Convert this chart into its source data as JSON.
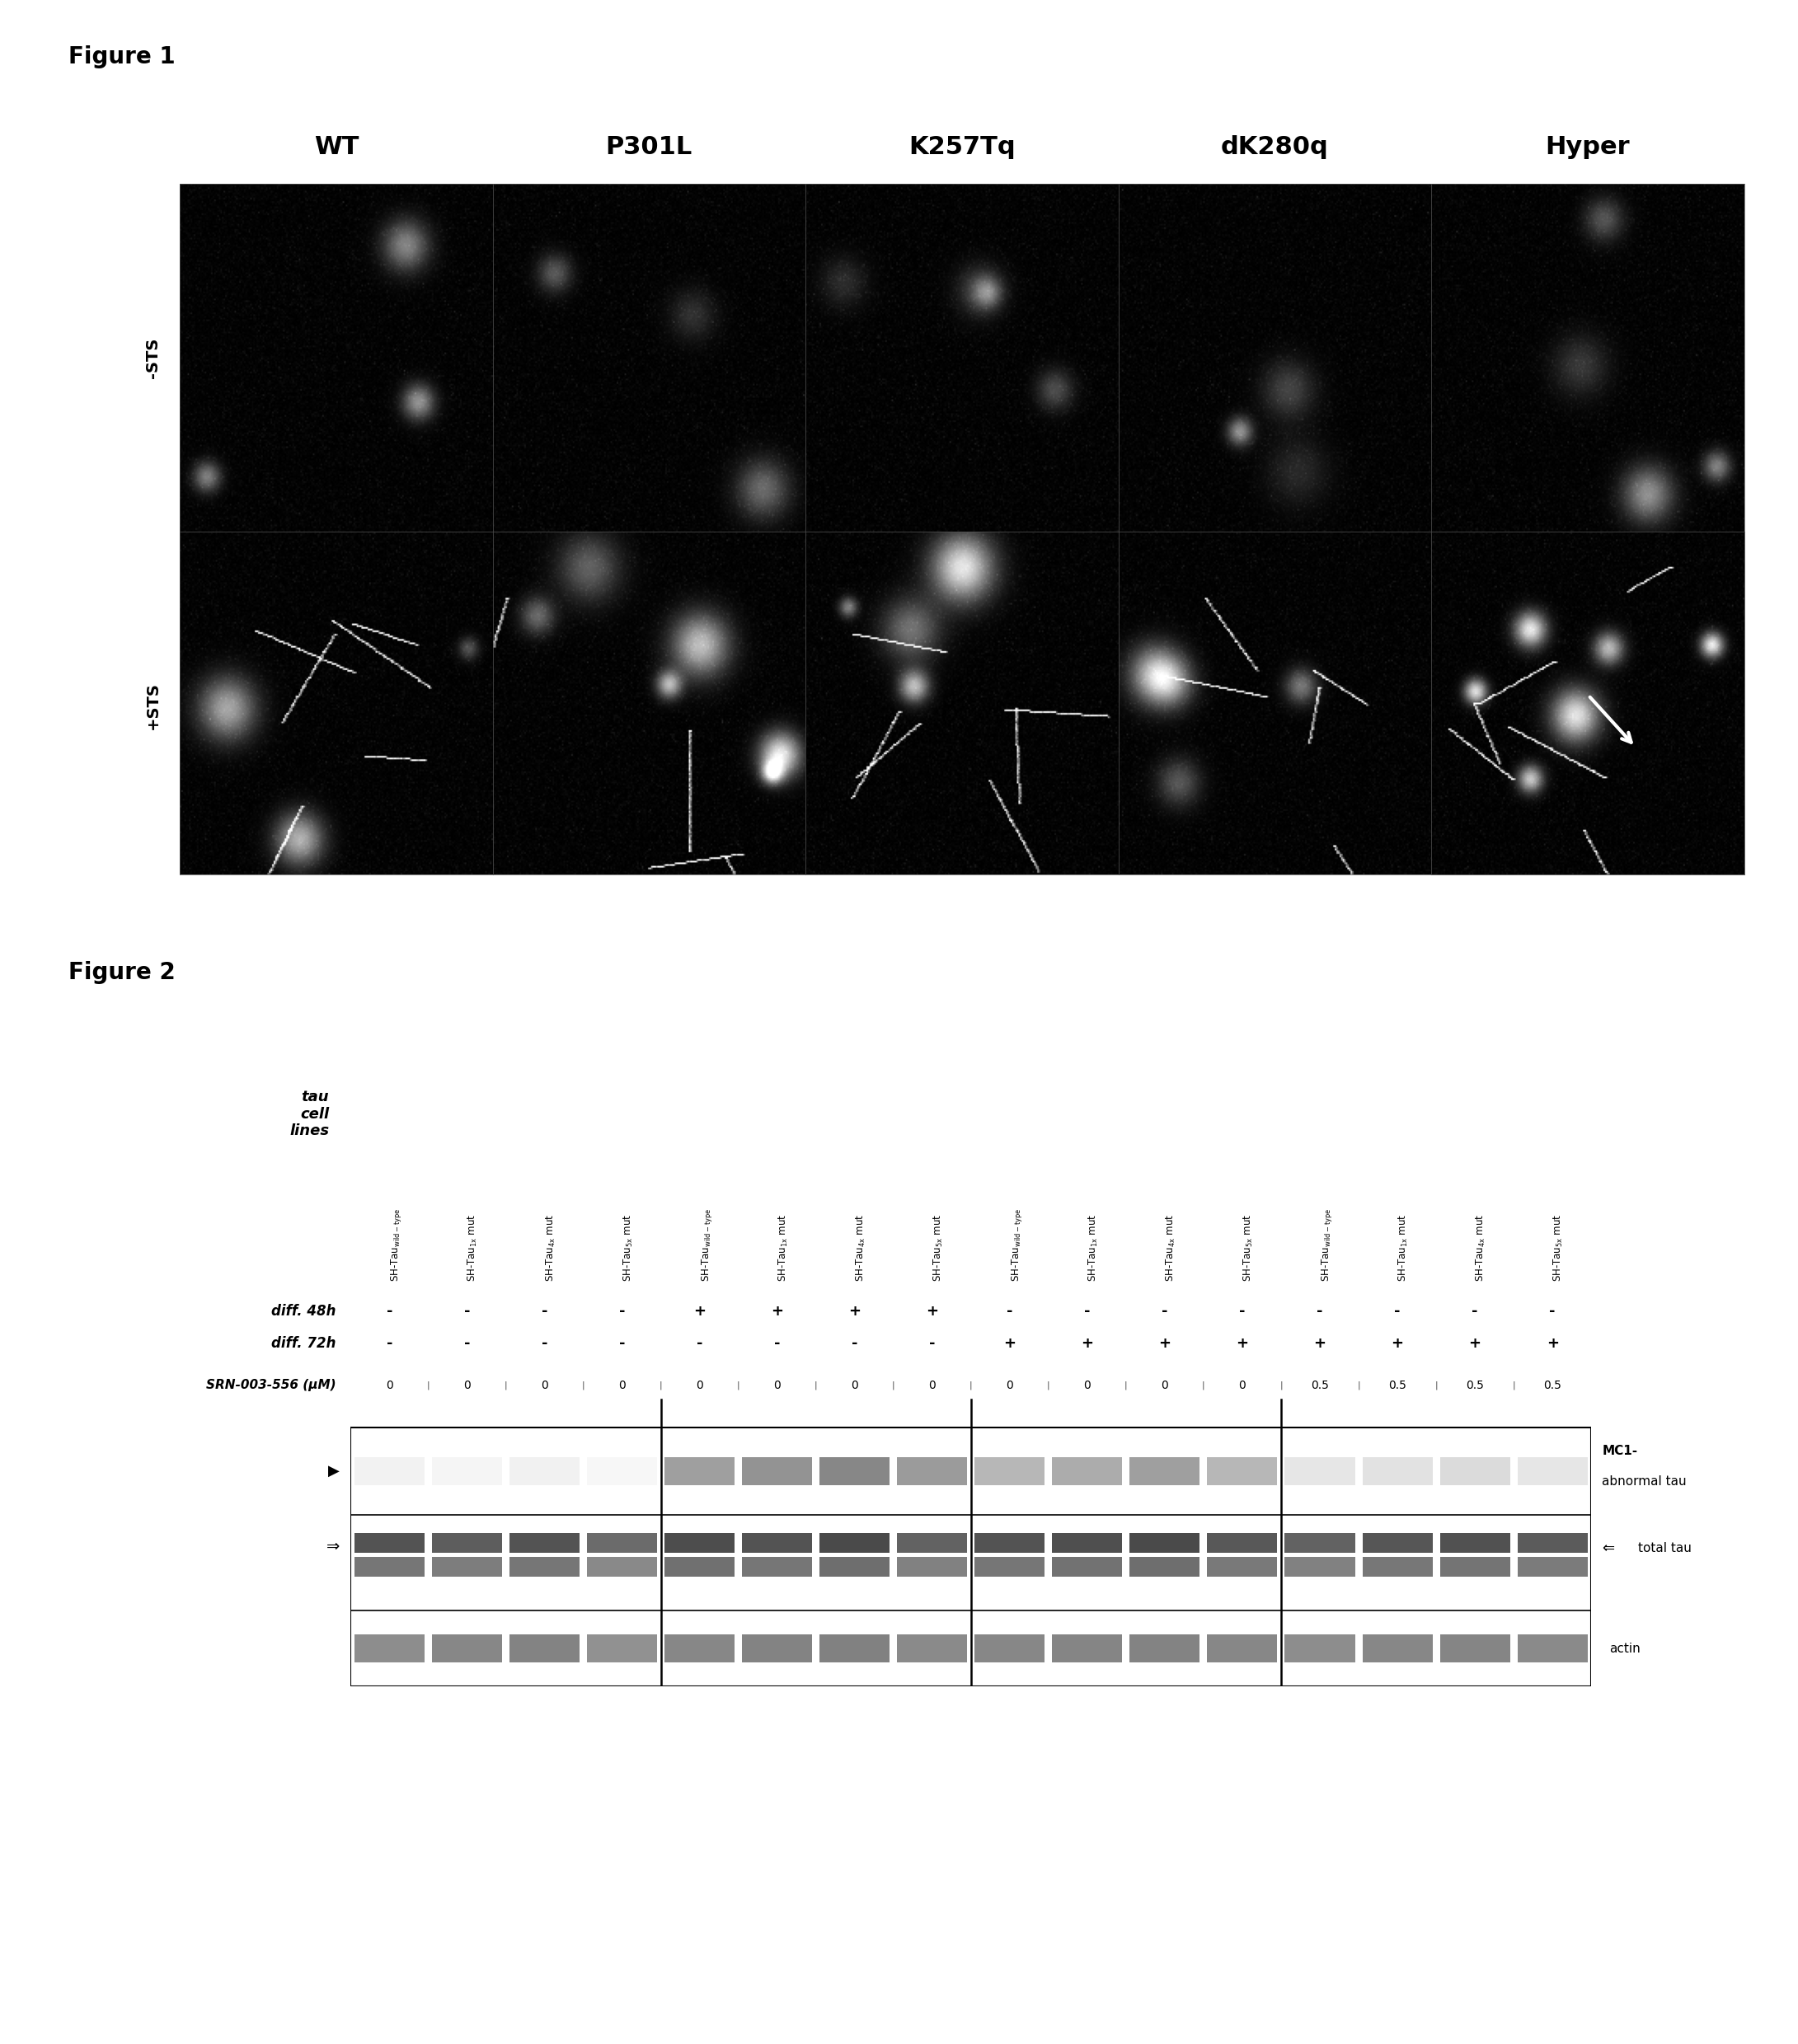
{
  "figure1_label": "Figure 1",
  "figure2_label": "Figure 2",
  "col_labels": [
    "WT",
    "P301L",
    "K257Tq",
    "dK280q",
    "Hyper"
  ],
  "row_label_minus_sts": "-STS",
  "row_label_plus_sts": "+STS",
  "tau_cell_lines_label": "tau\ncell\nlines",
  "column_headers": [
    "SH-Tau$_{\\mathrm{wild-type}}$",
    "SH-Tau$_{\\mathrm{1x}}$ mut",
    "SH-Tau$_{\\mathrm{4x}}$ mut",
    "SH-Tau$_{\\mathrm{5x}}$ mut",
    "SH-Tau$_{\\mathrm{wild-type}}$",
    "SH-Tau$_{\\mathrm{1x}}$ mut",
    "SH-Tau$_{\\mathrm{4x}}$ mut",
    "SH-Tau$_{\\mathrm{5x}}$ mut",
    "SH-Tau$_{\\mathrm{wild-type}}$",
    "SH-Tau$_{\\mathrm{1x}}$ mut",
    "SH-Tau$_{\\mathrm{4x}}$ mut",
    "SH-Tau$_{\\mathrm{5x}}$ mut",
    "SH-Tau$_{\\mathrm{wild-type}}$",
    "SH-Tau$_{\\mathrm{1x}}$ mut",
    "SH-Tau$_{\\mathrm{4x}}$ mut",
    "SH-Tau$_{\\mathrm{5x}}$ mut"
  ],
  "diff48h": [
    "-",
    "-",
    "-",
    "-",
    "+",
    "+",
    "+",
    "+",
    "-",
    "-",
    "-",
    "-",
    "-",
    "-",
    "-",
    "-"
  ],
  "diff72h": [
    "-",
    "-",
    "-",
    "-",
    "-",
    "-",
    "-",
    "-",
    "+",
    "+",
    "+",
    "+",
    "+",
    "+",
    "+",
    "+"
  ],
  "srn_values": [
    "0",
    "0",
    "0",
    "0",
    "0",
    "0",
    "0",
    "0",
    "0",
    "0",
    "0",
    "0",
    "0.5",
    "0.5",
    "0.5",
    "0.5"
  ],
  "label_diff48h": "diff. 48h",
  "label_diff72h": "diff. 72h",
  "label_srn": "SRN-003-556 (μM)",
  "label_mc1": "MC1-",
  "label_abnormal": "abnormal tau",
  "label_total": "total tau",
  "label_actin": "actin",
  "n_cols": 16,
  "group_separators": [
    4,
    8,
    12
  ],
  "mc1_intensities": [
    0.05,
    0.04,
    0.06,
    0.03,
    0.4,
    0.45,
    0.5,
    0.42,
    0.3,
    0.35,
    0.4,
    0.3,
    0.1,
    0.12,
    0.15,
    0.1
  ],
  "total_tau_int": [
    0.72,
    0.68,
    0.72,
    0.62,
    0.75,
    0.72,
    0.76,
    0.66,
    0.72,
    0.74,
    0.76,
    0.7,
    0.66,
    0.71,
    0.73,
    0.69
  ],
  "actin_int": [
    0.48,
    0.5,
    0.52,
    0.46,
    0.5,
    0.52,
    0.53,
    0.49,
    0.5,
    0.51,
    0.52,
    0.5,
    0.48,
    0.5,
    0.51,
    0.49
  ]
}
